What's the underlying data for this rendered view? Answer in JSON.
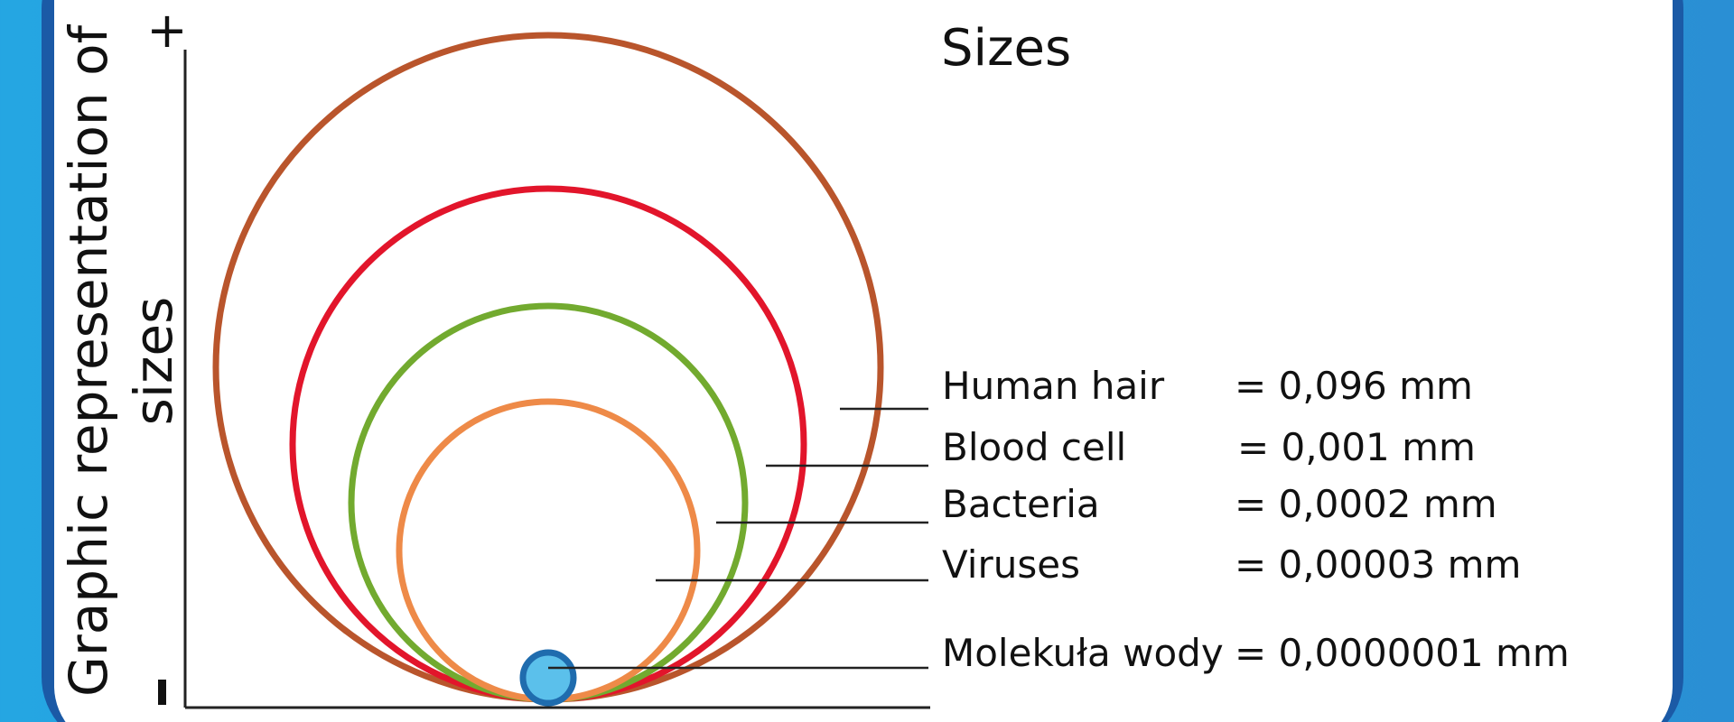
{
  "title": "Sizes",
  "axis": {
    "label": "Graphic representation of sizes",
    "label_line1": "Graphic representation of",
    "label_line2": "sizes",
    "top_marker": "+",
    "bottom_marker": "-"
  },
  "items": [
    {
      "name": "Human hair",
      "value": "= 0,096 mm",
      "color": "#b9552c"
    },
    {
      "name": "Blood cell",
      "value": "= 0,001 mm",
      "color": "#e2152b"
    },
    {
      "name": "Bacteria",
      "value": "= 0,0002 mm",
      "color": "#72aa2f"
    },
    {
      "name": "Viruses",
      "value": "= 0,00003 mm",
      "color": "#ee8a48"
    },
    {
      "name": "Molekuła wody",
      "value": "= 0,0000001 mm",
      "color": "#1f6cae",
      "fill": "#5bc0eb"
    }
  ]
}
